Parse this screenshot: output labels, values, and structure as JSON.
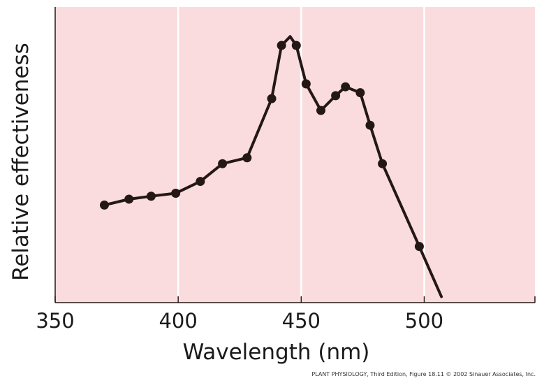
{
  "chart_data": {
    "type": "line",
    "title": "",
    "xlabel": "Wavelength (nm)",
    "ylabel": "Relative effectiveness",
    "xlim": [
      350,
      545
    ],
    "ylim": [
      0,
      1
    ],
    "xticks": [
      350,
      400,
      450,
      500
    ],
    "x_tick_labels": [
      "350",
      "400",
      "450",
      "500"
    ],
    "grid": "vertical white lines at major x ticks",
    "plot_background": "#fbdcde",
    "line_color": "#231815",
    "marker_color": "#231815",
    "y_tick_labels_shown": false,
    "series": [
      {
        "points": [
          {
            "x": 370,
            "y": 0.33
          },
          {
            "x": 380,
            "y": 0.35
          },
          {
            "x": 389,
            "y": 0.36
          },
          {
            "x": 399,
            "y": 0.37
          },
          {
            "x": 409,
            "y": 0.41
          },
          {
            "x": 418,
            "y": 0.47
          },
          {
            "x": 428,
            "y": 0.49
          },
          {
            "x": 438,
            "y": 0.69
          },
          {
            "x": 442,
            "y": 0.87
          },
          {
            "x": 448,
            "y": 0.87
          },
          {
            "x": 452,
            "y": 0.74
          },
          {
            "x": 458,
            "y": 0.65
          },
          {
            "x": 464,
            "y": 0.7
          },
          {
            "x": 468,
            "y": 0.73
          },
          {
            "x": 474,
            "y": 0.71
          },
          {
            "x": 478,
            "y": 0.6
          },
          {
            "x": 483,
            "y": 0.47
          },
          {
            "x": 498,
            "y": 0.19
          }
        ],
        "curve_tail": [
          {
            "x": 445.5,
            "y": 0.9
          },
          {
            "x": 507,
            "y": 0.02
          }
        ]
      }
    ]
  },
  "credit": "PLANT PHYSIOLOGY, Third Edition, Figure 18.11  © 2002 Sinauer Associates, Inc."
}
